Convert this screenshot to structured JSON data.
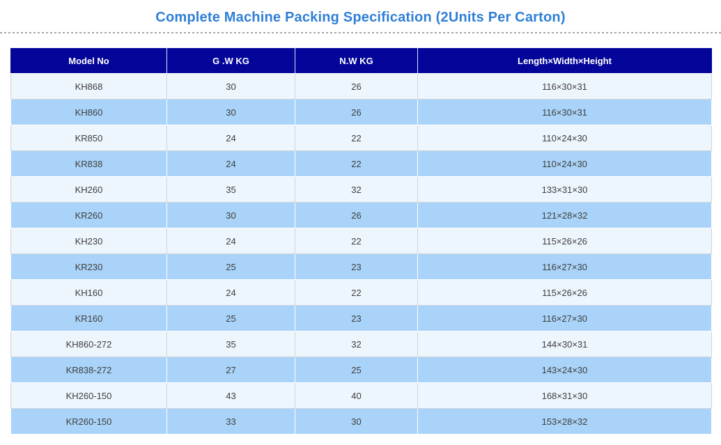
{
  "page": {
    "title": "Complete Machine Packing Specification (2Units Per Carton)"
  },
  "table": {
    "columns": [
      "Model No",
      "G .W KG",
      "N.W KG",
      "Length×Width×Height"
    ],
    "rows": [
      [
        "KH868",
        "30",
        "26",
        "116×30×31"
      ],
      [
        "KH860",
        "30",
        "26",
        "116×30×31"
      ],
      [
        "KR850",
        "24",
        "22",
        "110×24×30"
      ],
      [
        "KR838",
        "24",
        "22",
        "110×24×30"
      ],
      [
        "KH260",
        "35",
        "32",
        "133×31×30"
      ],
      [
        "KR260",
        "30",
        "26",
        "121×28×32"
      ],
      [
        "KH230",
        "24",
        "22",
        "115×26×26"
      ],
      [
        "KR230",
        "25",
        "23",
        "116×27×30"
      ],
      [
        "KH160",
        "24",
        "22",
        "115×26×26"
      ],
      [
        "KR160",
        "25",
        "23",
        "116×27×30"
      ],
      [
        "KH860-272",
        "35",
        "32",
        "144×30×31"
      ],
      [
        "KR838-272",
        "27",
        "25",
        "143×24×30"
      ],
      [
        "KH260-150",
        "43",
        "40",
        "168×31×30"
      ],
      [
        "KR260-150",
        "33",
        "30",
        "153×28×32"
      ]
    ]
  },
  "colors": {
    "title": "#2f7fd6",
    "header_bg": "#04069a",
    "header_text": "#ffffff",
    "row_light_bg": "#edf5fd",
    "row_blue_bg": "#a9d3f8",
    "cell_text": "#3f3f3f",
    "separator": "#a6a6a6"
  }
}
